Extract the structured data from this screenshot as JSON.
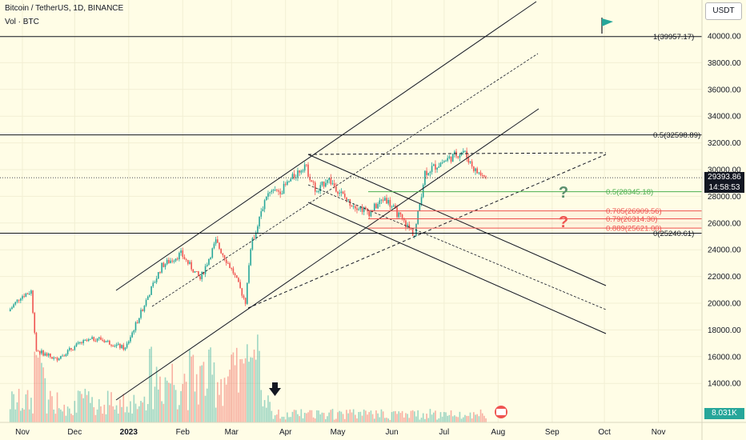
{
  "header": {
    "title": "Bitcoin / TetherUS, 1D, BINANCE",
    "volume_label": "Vol · BTC"
  },
  "currency_badge": "USDT",
  "colors": {
    "up": "#26a69a",
    "down": "#ef5350",
    "green_level": "#4caf50",
    "red_level": "#ef5350",
    "line": "#131722",
    "last_price_bg": "#131722"
  },
  "last_price": {
    "value": "29393.86",
    "countdown": "14:58:53"
  },
  "volume_last": "8.031K",
  "chart_data": {
    "type": "candlestick",
    "title": "Bitcoin / TetherUS, 1D, BINANCE",
    "ylim": [
      12000,
      42000
    ],
    "x_ticks": [
      "Nov",
      "Dec",
      "2023",
      "Feb",
      "Mar",
      "Apr",
      "May",
      "Jun",
      "Jul",
      "Aug",
      "Sep",
      "Oct",
      "Nov"
    ],
    "y_ticks": [
      "14000.00",
      "16000.00",
      "18000.00",
      "20000.00",
      "22000.00",
      "24000.00",
      "26000.00",
      "28000.00",
      "30000.00",
      "32000.00",
      "34000.00",
      "36000.00",
      "38000.00",
      "40000.00"
    ],
    "price_path": [
      {
        "date": "2022-10-25",
        "close": 19400
      },
      {
        "date": "2022-11-01",
        "close": 20500
      },
      {
        "date": "2022-11-07",
        "close": 20900
      },
      {
        "date": "2022-11-10",
        "close": 16500
      },
      {
        "date": "2022-11-21",
        "close": 15800
      },
      {
        "date": "2022-12-05",
        "close": 17000
      },
      {
        "date": "2022-12-15",
        "close": 17400
      },
      {
        "date": "2022-12-31",
        "close": 16600
      },
      {
        "date": "2023-01-14",
        "close": 20800
      },
      {
        "date": "2023-01-21",
        "close": 22800
      },
      {
        "date": "2023-02-01",
        "close": 23700
      },
      {
        "date": "2023-02-12",
        "close": 21800
      },
      {
        "date": "2023-02-21",
        "close": 24600
      },
      {
        "date": "2023-03-03",
        "close": 22300
      },
      {
        "date": "2023-03-10",
        "close": 20100
      },
      {
        "date": "2023-03-13",
        "close": 24200
      },
      {
        "date": "2023-03-22",
        "close": 28100
      },
      {
        "date": "2023-03-31",
        "close": 28500
      },
      {
        "date": "2023-04-13",
        "close": 30400
      },
      {
        "date": "2023-04-20",
        "close": 28200
      },
      {
        "date": "2023-04-26",
        "close": 29400
      },
      {
        "date": "2023-05-08",
        "close": 27600
      },
      {
        "date": "2023-05-20",
        "close": 26800
      },
      {
        "date": "2023-05-29",
        "close": 27900
      },
      {
        "date": "2023-06-10",
        "close": 25900
      },
      {
        "date": "2023-06-15",
        "close": 25100
      },
      {
        "date": "2023-06-21",
        "close": 29800
      },
      {
        "date": "2023-06-30",
        "close": 30500
      },
      {
        "date": "2023-07-13",
        "close": 31400
      },
      {
        "date": "2023-07-20",
        "close": 29900
      },
      {
        "date": "2023-07-26",
        "close": 29400
      }
    ],
    "fib_levels": [
      {
        "label": "1(39957.17)",
        "value": 39957.17,
        "color": "#131722"
      },
      {
        "label": "0.5(32598.89)",
        "value": 32598.89,
        "color": "#131722"
      },
      {
        "label": "0.5(28345.18)",
        "value": 28345.18,
        "color": "#4caf50"
      },
      {
        "label": "0.705(26909.56)",
        "value": 26909.56,
        "color": "#ef5350"
      },
      {
        "label": "0.79(26314.30)",
        "value": 26314.3,
        "color": "#ef5350"
      },
      {
        "label": "0.889(25621.00)",
        "value": 25621.0,
        "color": "#ef5350"
      },
      {
        "label": "0(25240.61)",
        "value": 25240.61,
        "color": "#131722"
      }
    ]
  }
}
